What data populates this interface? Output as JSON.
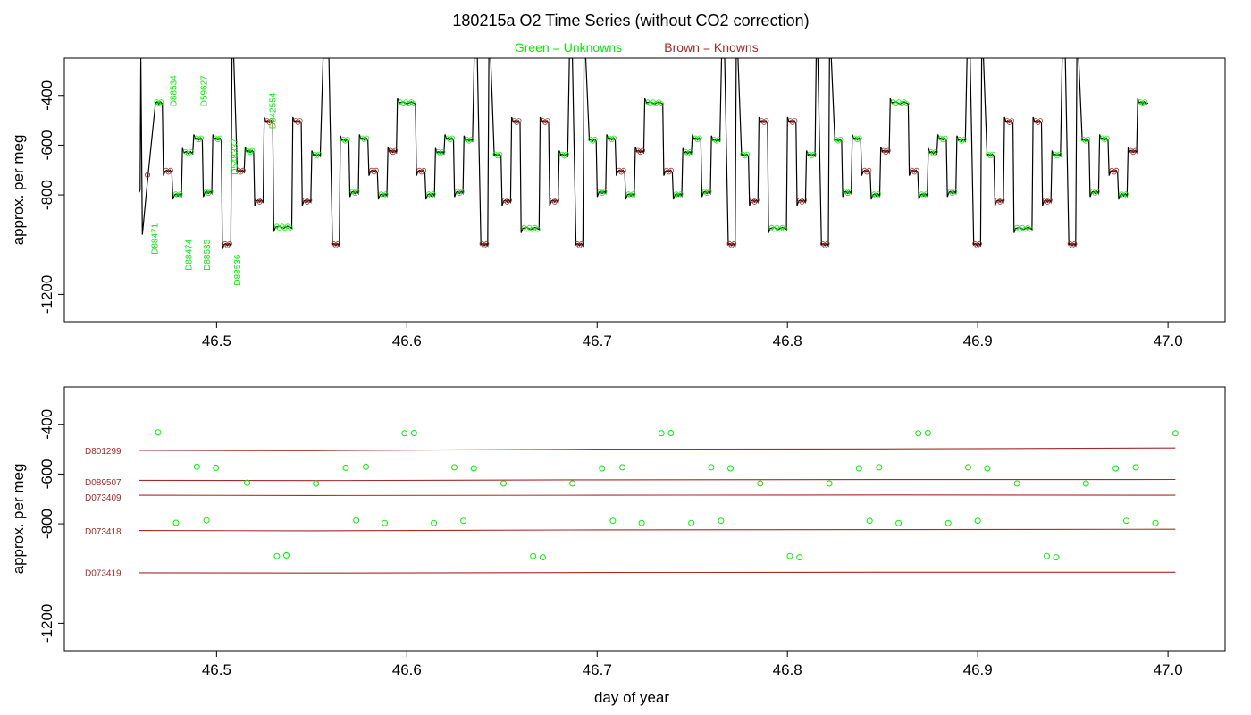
{
  "title": "180215a   O2 Time Series (without CO2 correction)",
  "legend": {
    "unknowns": "Green = Unknowns",
    "knowns": "Brown = Knowns"
  },
  "colors": {
    "unknown": "#00ee00",
    "known": "#a52a2a",
    "trace": "#000000",
    "frame": "#000000"
  },
  "chart_data": [
    {
      "type": "line",
      "panel": "top",
      "xlabel": "",
      "ylabel": "approx. per meg",
      "xlim": [
        46.42,
        47.03
      ],
      "ylim": [
        -1310,
        -250
      ],
      "y_reversed": true,
      "x_ticks": [
        "46.5",
        "46.6",
        "46.7",
        "46.8",
        "46.9",
        "47.0"
      ],
      "y_ticks": [
        "-400",
        "-600",
        "-800",
        "-1200"
      ],
      "tank_labels": [
        {
          "id": "D88534",
          "x": 46.479,
          "y": -445
        },
        {
          "id": "D59627",
          "x": 46.495,
          "y": -445
        },
        {
          "id": "D88471",
          "x": 46.469,
          "y": -1040
        },
        {
          "id": "D548337",
          "x": 46.511,
          "y": -720
        },
        {
          "id": "D842554",
          "x": 46.531,
          "y": -535
        },
        {
          "id": "D88474",
          "x": 46.487,
          "y": -1105
        },
        {
          "id": "D88535",
          "x": 46.4965,
          "y": -1105
        },
        {
          "id": "D88536",
          "x": 46.5125,
          "y": -1165
        }
      ],
      "segments": [
        {
          "x0": 46.4665,
          "x1": 46.4715,
          "y": -430,
          "kind": "unknown"
        },
        {
          "x0": 46.4715,
          "x1": 46.4765,
          "y": -705,
          "kind": "known"
        },
        {
          "x0": 46.4765,
          "x1": 46.4815,
          "y": -800,
          "kind": "unknown"
        },
        {
          "x0": 46.4815,
          "x1": 46.4875,
          "y": -630,
          "kind": "unknown"
        },
        {
          "x0": 46.4875,
          "x1": 46.4925,
          "y": -575,
          "kind": "unknown"
        },
        {
          "x0": 46.4925,
          "x1": 46.4975,
          "y": -790,
          "kind": "unknown"
        },
        {
          "x0": 46.4975,
          "x1": 46.5025,
          "y": -575,
          "kind": "unknown"
        },
        {
          "x0": 46.5025,
          "x1": 46.5075,
          "y": -1000,
          "kind": "known"
        },
        {
          "x0": 46.5095,
          "x1": 46.5145,
          "y": -705,
          "kind": "known"
        },
        {
          "x0": 46.5145,
          "x1": 46.5195,
          "y": -625,
          "kind": "unknown"
        },
        {
          "x0": 46.5195,
          "x1": 46.5245,
          "y": -825,
          "kind": "known"
        },
        {
          "x0": 46.5245,
          "x1": 46.5295,
          "y": -505,
          "kind": "known"
        },
        {
          "x0": 46.5295,
          "x1": 46.5395,
          "y": -930,
          "kind": "unknown"
        },
        {
          "x0": 46.5395,
          "x1": 46.5445,
          "y": -505,
          "kind": "known"
        },
        {
          "x0": 46.5445,
          "x1": 46.5495,
          "y": -825,
          "kind": "known"
        },
        {
          "x0": 46.5495,
          "x1": 46.5545,
          "y": -640,
          "kind": "unknown"
        },
        {
          "x0": 46.5595,
          "x1": 46.5645,
          "y": -1000,
          "kind": "known"
        },
        {
          "x0": 46.5645,
          "x1": 46.5695,
          "y": -580,
          "kind": "unknown"
        },
        {
          "x0": 46.5695,
          "x1": 46.5745,
          "y": -790,
          "kind": "unknown"
        },
        {
          "x0": 46.5745,
          "x1": 46.5795,
          "y": -575,
          "kind": "unknown"
        },
        {
          "x0": 46.5795,
          "x1": 46.5845,
          "y": -705,
          "kind": "known"
        },
        {
          "x0": 46.5845,
          "x1": 46.5895,
          "y": -800,
          "kind": "unknown"
        },
        {
          "x0": 46.5895,
          "x1": 46.5945,
          "y": -625,
          "kind": "known"
        },
        {
          "x0": 46.5945,
          "x1": 46.6045,
          "y": -430,
          "kind": "unknown"
        },
        {
          "x0": 46.6045,
          "x1": 46.6095,
          "y": -705,
          "kind": "known"
        },
        {
          "x0": 46.6095,
          "x1": 46.6145,
          "y": -800,
          "kind": "unknown"
        },
        {
          "x0": 46.6145,
          "x1": 46.6195,
          "y": -630,
          "kind": "unknown"
        },
        {
          "x0": 46.6195,
          "x1": 46.6245,
          "y": -575,
          "kind": "unknown"
        },
        {
          "x0": 46.6245,
          "x1": 46.6295,
          "y": -790,
          "kind": "unknown"
        },
        {
          "x0": 46.6295,
          "x1": 46.6345,
          "y": -580,
          "kind": "unknown"
        },
        {
          "x0": 46.6375,
          "x1": 46.6425,
          "y": -1000,
          "kind": "known"
        },
        {
          "x0": 46.6445,
          "x1": 46.6495,
          "y": -640,
          "kind": "unknown"
        },
        {
          "x0": 46.6495,
          "x1": 46.6545,
          "y": -825,
          "kind": "known"
        },
        {
          "x0": 46.6545,
          "x1": 46.6595,
          "y": -505,
          "kind": "known"
        },
        {
          "x0": 46.6595,
          "x1": 46.6695,
          "y": -935,
          "kind": "unknown"
        },
        {
          "x0": 46.6695,
          "x1": 46.6745,
          "y": -505,
          "kind": "known"
        },
        {
          "x0": 46.6745,
          "x1": 46.6795,
          "y": -825,
          "kind": "known"
        },
        {
          "x0": 46.6795,
          "x1": 46.6845,
          "y": -640,
          "kind": "unknown"
        },
        {
          "x0": 46.6875,
          "x1": 46.6925,
          "y": -1000,
          "kind": "known"
        },
        {
          "x0": 46.6945,
          "x1": 46.6995,
          "y": -580,
          "kind": "unknown"
        },
        {
          "x0": 46.6995,
          "x1": 46.7045,
          "y": -790,
          "kind": "unknown"
        },
        {
          "x0": 46.7045,
          "x1": 46.7095,
          "y": -575,
          "kind": "unknown"
        },
        {
          "x0": 46.7095,
          "x1": 46.7145,
          "y": -705,
          "kind": "known"
        },
        {
          "x0": 46.7145,
          "x1": 46.7195,
          "y": -800,
          "kind": "unknown"
        },
        {
          "x0": 46.7195,
          "x1": 46.7245,
          "y": -625,
          "kind": "known"
        },
        {
          "x0": 46.7245,
          "x1": 46.7345,
          "y": -430,
          "kind": "unknown"
        },
        {
          "x0": 46.7345,
          "x1": 46.7395,
          "y": -705,
          "kind": "known"
        },
        {
          "x0": 46.7395,
          "x1": 46.7445,
          "y": -800,
          "kind": "unknown"
        },
        {
          "x0": 46.7445,
          "x1": 46.7495,
          "y": -630,
          "kind": "unknown"
        },
        {
          "x0": 46.7495,
          "x1": 46.7545,
          "y": -575,
          "kind": "unknown"
        },
        {
          "x0": 46.7545,
          "x1": 46.7595,
          "y": -790,
          "kind": "unknown"
        },
        {
          "x0": 46.7595,
          "x1": 46.7645,
          "y": -580,
          "kind": "unknown"
        },
        {
          "x0": 46.7675,
          "x1": 46.7725,
          "y": -1000,
          "kind": "known"
        },
        {
          "x0": 46.7745,
          "x1": 46.7795,
          "y": -640,
          "kind": "unknown"
        },
        {
          "x0": 46.7795,
          "x1": 46.7845,
          "y": -825,
          "kind": "known"
        },
        {
          "x0": 46.7845,
          "x1": 46.7895,
          "y": -505,
          "kind": "known"
        },
        {
          "x0": 46.7895,
          "x1": 46.7995,
          "y": -935,
          "kind": "unknown"
        },
        {
          "x0": 46.7995,
          "x1": 46.8045,
          "y": -505,
          "kind": "known"
        },
        {
          "x0": 46.8045,
          "x1": 46.8095,
          "y": -825,
          "kind": "known"
        },
        {
          "x0": 46.8095,
          "x1": 46.8145,
          "y": -640,
          "kind": "unknown"
        },
        {
          "x0": 46.8165,
          "x1": 46.8215,
          "y": -1000,
          "kind": "known"
        },
        {
          "x0": 46.8235,
          "x1": 46.8285,
          "y": -580,
          "kind": "unknown"
        },
        {
          "x0": 46.8285,
          "x1": 46.8335,
          "y": -790,
          "kind": "unknown"
        },
        {
          "x0": 46.8335,
          "x1": 46.8385,
          "y": -575,
          "kind": "unknown"
        },
        {
          "x0": 46.8385,
          "x1": 46.8435,
          "y": -705,
          "kind": "known"
        },
        {
          "x0": 46.8435,
          "x1": 46.8485,
          "y": -800,
          "kind": "unknown"
        },
        {
          "x0": 46.8485,
          "x1": 46.8535,
          "y": -625,
          "kind": "known"
        },
        {
          "x0": 46.8535,
          "x1": 46.8635,
          "y": -430,
          "kind": "unknown"
        },
        {
          "x0": 46.8635,
          "x1": 46.8685,
          "y": -705,
          "kind": "known"
        },
        {
          "x0": 46.8685,
          "x1": 46.8735,
          "y": -800,
          "kind": "unknown"
        },
        {
          "x0": 46.8735,
          "x1": 46.8785,
          "y": -630,
          "kind": "unknown"
        },
        {
          "x0": 46.8785,
          "x1": 46.8835,
          "y": -575,
          "kind": "unknown"
        },
        {
          "x0": 46.8835,
          "x1": 46.8885,
          "y": -790,
          "kind": "unknown"
        },
        {
          "x0": 46.8885,
          "x1": 46.8935,
          "y": -580,
          "kind": "unknown"
        },
        {
          "x0": 46.8965,
          "x1": 46.9015,
          "y": -1000,
          "kind": "known"
        },
        {
          "x0": 46.9035,
          "x1": 46.9085,
          "y": -640,
          "kind": "unknown"
        },
        {
          "x0": 46.9085,
          "x1": 46.9135,
          "y": -825,
          "kind": "known"
        },
        {
          "x0": 46.9135,
          "x1": 46.9185,
          "y": -505,
          "kind": "known"
        },
        {
          "x0": 46.9185,
          "x1": 46.9285,
          "y": -935,
          "kind": "unknown"
        },
        {
          "x0": 46.9285,
          "x1": 46.9335,
          "y": -505,
          "kind": "known"
        },
        {
          "x0": 46.9335,
          "x1": 46.9385,
          "y": -825,
          "kind": "known"
        },
        {
          "x0": 46.9385,
          "x1": 46.9435,
          "y": -640,
          "kind": "unknown"
        },
        {
          "x0": 46.9465,
          "x1": 46.9515,
          "y": -1000,
          "kind": "known"
        },
        {
          "x0": 46.9535,
          "x1": 46.9585,
          "y": -580,
          "kind": "unknown"
        },
        {
          "x0": 46.9585,
          "x1": 46.9635,
          "y": -790,
          "kind": "unknown"
        },
        {
          "x0": 46.9635,
          "x1": 46.9685,
          "y": -575,
          "kind": "unknown"
        },
        {
          "x0": 46.9685,
          "x1": 46.9735,
          "y": -705,
          "kind": "known"
        },
        {
          "x0": 46.9735,
          "x1": 46.9785,
          "y": -800,
          "kind": "unknown"
        },
        {
          "x0": 46.9785,
          "x1": 46.9835,
          "y": -625,
          "kind": "known"
        },
        {
          "x0": 46.9835,
          "x1": 46.9885,
          "y": -430,
          "kind": "unknown"
        }
      ]
    },
    {
      "type": "scatter",
      "panel": "bottom",
      "xlabel": "day of year",
      "ylabel": "approx. per meg",
      "xlim": [
        46.42,
        47.03
      ],
      "ylim": [
        -1310,
        -250
      ],
      "y_reversed": true,
      "x_ticks": [
        "46.5",
        "46.6",
        "46.7",
        "46.8",
        "46.9",
        "47.0"
      ],
      "y_ticks": [
        "-400",
        "-600",
        "-800",
        "-1200"
      ],
      "reference_lines": [
        {
          "name": "D801299",
          "y_start": -505,
          "y_end": -495
        },
        {
          "name": "D089507",
          "y_start": -625,
          "y_end": -622
        },
        {
          "name": "D073409",
          "y_start": -685,
          "y_end": -685
        },
        {
          "name": "D073418",
          "y_start": -827,
          "y_end": -822
        },
        {
          "name": "D073419",
          "y_start": -997,
          "y_end": -995
        }
      ],
      "reference_label_y": {
        "D801299": -505,
        "D089507": -630,
        "D073409": -692,
        "D073418": -828,
        "D073419": -995
      },
      "unknown_points": [
        [
          46.4693,
          -432
        ],
        [
          46.4787,
          -796
        ],
        [
          46.4897,
          -571
        ],
        [
          46.4947,
          -786
        ],
        [
          46.4997,
          -575
        ],
        [
          46.5161,
          -635
        ],
        [
          46.5317,
          -930
        ],
        [
          46.5367,
          -927
        ],
        [
          46.5523,
          -638
        ],
        [
          46.5679,
          -575
        ],
        [
          46.5734,
          -786
        ],
        [
          46.5785,
          -571
        ],
        [
          46.5884,
          -797
        ],
        [
          46.5988,
          -436
        ],
        [
          46.6038,
          -435
        ],
        [
          46.6142,
          -797
        ],
        [
          46.625,
          -573
        ],
        [
          46.6297,
          -788
        ],
        [
          46.6352,
          -577
        ],
        [
          46.6508,
          -638
        ],
        [
          46.6664,
          -930
        ],
        [
          46.6714,
          -935
        ],
        [
          46.687,
          -638
        ],
        [
          46.7026,
          -577
        ],
        [
          46.7083,
          -788
        ],
        [
          46.7133,
          -573
        ],
        [
          46.7234,
          -797
        ],
        [
          46.7338,
          -436
        ],
        [
          46.7388,
          -435
        ],
        [
          46.7495,
          -797
        ],
        [
          46.76,
          -573
        ],
        [
          46.7651,
          -788
        ],
        [
          46.7701,
          -577
        ],
        [
          46.7857,
          -638
        ],
        [
          46.8013,
          -930
        ],
        [
          46.8064,
          -935
        ],
        [
          46.822,
          -638
        ],
        [
          46.8376,
          -577
        ],
        [
          46.8432,
          -788
        ],
        [
          46.8482,
          -573
        ],
        [
          46.8584,
          -797
        ],
        [
          46.8688,
          -436
        ],
        [
          46.8738,
          -435
        ],
        [
          46.8845,
          -797
        ],
        [
          46.895,
          -573
        ],
        [
          46.9,
          -788
        ],
        [
          46.9051,
          -577
        ],
        [
          46.9207,
          -638
        ],
        [
          46.9363,
          -930
        ],
        [
          46.9413,
          -935
        ],
        [
          46.9569,
          -638
        ],
        [
          46.9725,
          -577
        ],
        [
          46.9781,
          -788
        ],
        [
          46.9831,
          -573
        ],
        [
          46.9934,
          -797
        ],
        [
          47.0039,
          -436
        ]
      ]
    }
  ]
}
